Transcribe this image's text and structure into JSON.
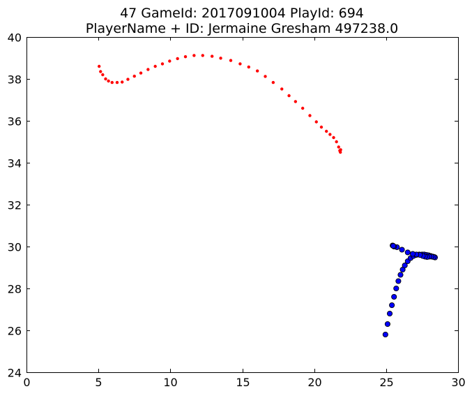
{
  "chart_data": {
    "type": "scatter",
    "title_line1": "47 GameId: 2017091004 PlayId: 694",
    "title_line2": "PlayerName + ID: Jermaine Gresham 497238.0",
    "xlabel": "",
    "ylabel": "",
    "xlim": [
      0,
      30
    ],
    "ylim": [
      24,
      40
    ],
    "xticks": [
      0,
      5,
      10,
      15,
      20,
      25,
      30
    ],
    "yticks": [
      24,
      26,
      28,
      30,
      32,
      34,
      36,
      38,
      40
    ],
    "grid": false,
    "series": [
      {
        "color": "#ff0000",
        "marker": "small-dot",
        "points": [
          [
            5.05,
            38.6
          ],
          [
            5.15,
            38.35
          ],
          [
            5.3,
            38.2
          ],
          [
            5.5,
            38.0
          ],
          [
            5.7,
            37.9
          ],
          [
            5.95,
            37.83
          ],
          [
            6.3,
            37.83
          ],
          [
            6.65,
            37.85
          ],
          [
            7.05,
            37.98
          ],
          [
            7.5,
            38.13
          ],
          [
            7.95,
            38.28
          ],
          [
            8.45,
            38.45
          ],
          [
            8.95,
            38.6
          ],
          [
            9.45,
            38.72
          ],
          [
            9.95,
            38.85
          ],
          [
            10.5,
            38.97
          ],
          [
            11.05,
            39.06
          ],
          [
            11.65,
            39.12
          ],
          [
            12.25,
            39.12
          ],
          [
            12.9,
            39.08
          ],
          [
            13.5,
            38.99
          ],
          [
            14.2,
            38.88
          ],
          [
            14.85,
            38.72
          ],
          [
            15.45,
            38.57
          ],
          [
            16.05,
            38.38
          ],
          [
            16.6,
            38.12
          ],
          [
            17.15,
            37.83
          ],
          [
            17.75,
            37.52
          ],
          [
            18.25,
            37.2
          ],
          [
            18.7,
            36.92
          ],
          [
            19.2,
            36.6
          ],
          [
            19.7,
            36.25
          ],
          [
            20.15,
            35.95
          ],
          [
            20.5,
            35.7
          ],
          [
            20.85,
            35.5
          ],
          [
            21.1,
            35.35
          ],
          [
            21.35,
            35.2
          ],
          [
            21.55,
            35.0
          ],
          [
            21.7,
            34.75
          ],
          [
            21.78,
            34.58
          ],
          [
            21.82,
            34.5
          ],
          [
            21.84,
            34.62
          ],
          [
            21.8,
            34.55
          ]
        ]
      },
      {
        "color": "#0000ff",
        "marker": "circle",
        "points": [
          [
            24.95,
            25.8
          ],
          [
            25.1,
            26.3
          ],
          [
            25.25,
            26.8
          ],
          [
            25.4,
            27.2
          ],
          [
            25.55,
            27.6
          ],
          [
            25.7,
            28.0
          ],
          [
            25.85,
            28.35
          ],
          [
            26.0,
            28.65
          ],
          [
            26.15,
            28.9
          ],
          [
            26.3,
            29.1
          ],
          [
            26.5,
            29.3
          ],
          [
            26.7,
            29.45
          ],
          [
            26.9,
            29.55
          ],
          [
            27.1,
            29.6
          ],
          [
            27.3,
            29.62
          ],
          [
            27.5,
            29.62
          ],
          [
            27.65,
            29.62
          ],
          [
            27.8,
            29.6
          ],
          [
            27.95,
            29.58
          ],
          [
            28.1,
            29.55
          ],
          [
            28.25,
            29.52
          ],
          [
            28.35,
            29.5
          ],
          [
            28.4,
            29.48
          ],
          [
            28.3,
            29.5
          ],
          [
            28.15,
            29.52
          ],
          [
            28.0,
            29.52
          ],
          [
            27.85,
            29.5
          ],
          [
            27.7,
            29.52
          ],
          [
            27.55,
            29.55
          ],
          [
            27.35,
            29.6
          ],
          [
            27.1,
            29.62
          ],
          [
            26.85,
            29.65
          ],
          [
            26.5,
            29.72
          ],
          [
            26.1,
            29.85
          ],
          [
            25.75,
            29.97
          ],
          [
            25.55,
            30.0
          ],
          [
            25.45,
            30.05
          ],
          [
            25.5,
            30.03
          ]
        ]
      }
    ]
  }
}
